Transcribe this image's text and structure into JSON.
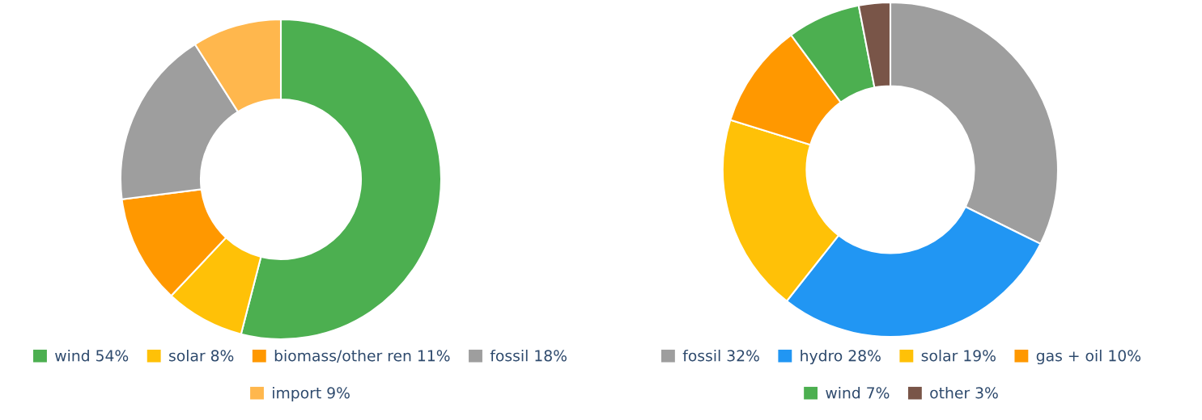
{
  "chart_data": [
    {
      "type": "donut",
      "categories": [
        "wind 54%",
        "solar 8%",
        "biomass/other ren 11%",
        "fossil 18%",
        "import 9%"
      ],
      "values": [
        54,
        8,
        11,
        18,
        9
      ],
      "colors": [
        "#4caf50",
        "#ffc107",
        "#ff9800",
        "#9e9e9e",
        "#ffb74d"
      ],
      "legend": "bottom"
    },
    {
      "type": "donut",
      "categories": [
        "fossil 32%",
        "hydro 28%",
        "solar 19%",
        "gas + oil 10%",
        "wind 7%",
        "other 3%"
      ],
      "values": [
        32,
        28,
        19,
        10,
        7,
        3
      ],
      "colors": [
        "#9e9e9e",
        "#2196f3",
        "#ffc107",
        "#ff9800",
        "#4caf50",
        "#795548"
      ],
      "legend": "bottom"
    }
  ]
}
